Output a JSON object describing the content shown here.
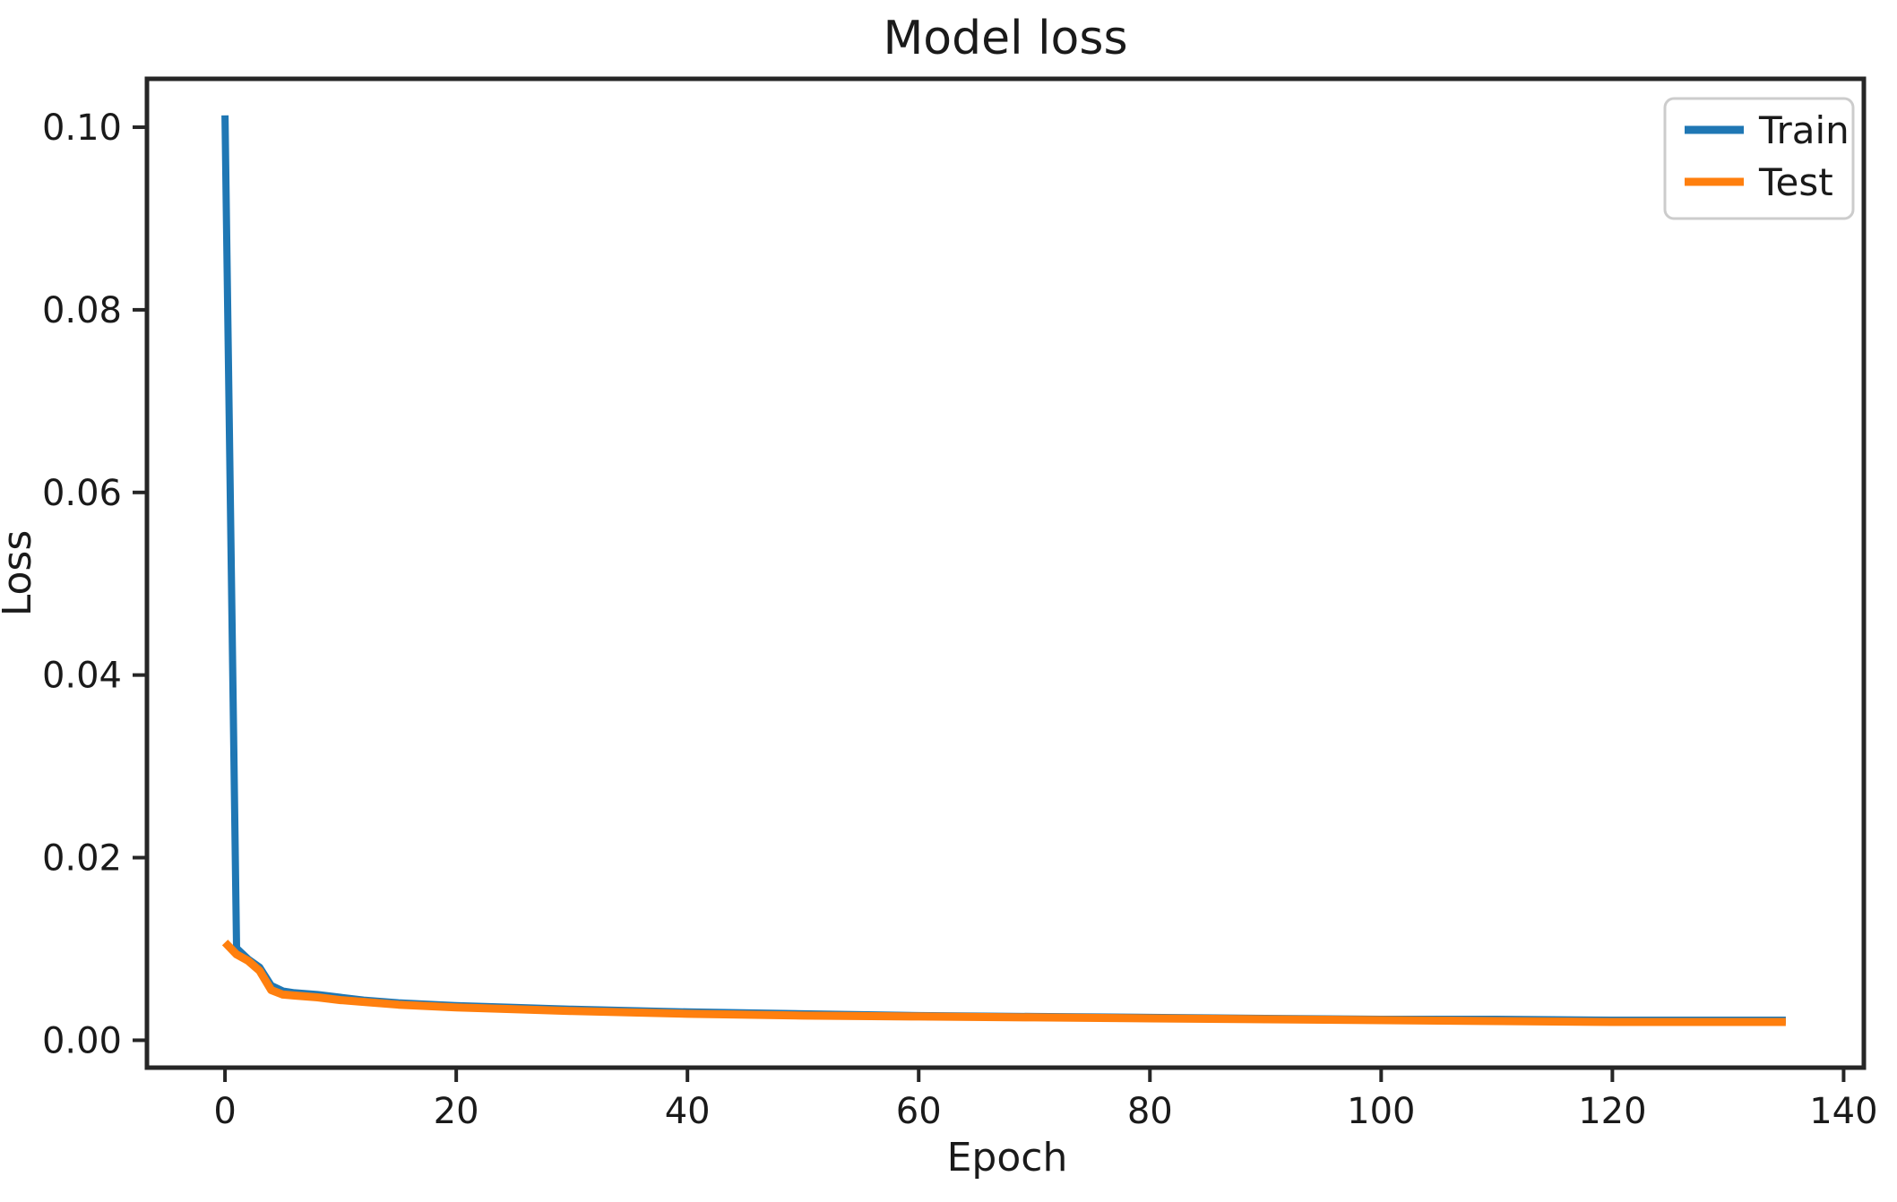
{
  "figure": {
    "background": "#ffffff",
    "spine_color": "#262626",
    "text_color": "#1a1a1a"
  },
  "chart_data": {
    "type": "line",
    "title": "Model loss",
    "xlabel": "Epoch",
    "ylabel": "Loss",
    "grid": false,
    "xlim": [
      -6.75,
      141.75
    ],
    "ylim": [
      -0.003,
      0.1053
    ],
    "x_ticks": {
      "values": [
        0,
        20,
        40,
        60,
        80,
        100,
        120,
        140
      ],
      "labels": [
        "0",
        "20",
        "40",
        "60",
        "80",
        "100",
        "120",
        "140"
      ]
    },
    "y_ticks": {
      "values": [
        0.0,
        0.02,
        0.04,
        0.06,
        0.08,
        0.1
      ],
      "labels": [
        "0.00",
        "0.02",
        "0.04",
        "0.06",
        "0.08",
        "0.10"
      ]
    },
    "legend": {
      "position": "upper right",
      "border_color": "#cccccc",
      "background": "#ffffff",
      "entries": [
        "Train",
        "Test"
      ]
    },
    "x": [
      0,
      1,
      2,
      3,
      4,
      5,
      6,
      8,
      10,
      12,
      15,
      20,
      25,
      30,
      40,
      50,
      60,
      70,
      80,
      90,
      100,
      110,
      120,
      130,
      135
    ],
    "series": [
      {
        "name": "Train",
        "color": "#1f77b4",
        "line_width": 8,
        "values": [
          0.1013,
          0.0101,
          0.0089,
          0.008,
          0.006,
          0.0054,
          0.0052,
          0.005,
          0.0047,
          0.0044,
          0.0041,
          0.0038,
          0.0036,
          0.0034,
          0.0031,
          0.0029,
          0.0027,
          0.0026,
          0.0025,
          0.0024,
          0.0023,
          0.0023,
          0.0022,
          0.0022,
          0.0022
        ]
      },
      {
        "name": "Test",
        "color": "#ff7f0e",
        "line_width": 9,
        "values": [
          0.0107,
          0.0094,
          0.0087,
          0.0076,
          0.0055,
          0.005,
          0.0049,
          0.0047,
          0.0044,
          0.0042,
          0.0039,
          0.0036,
          0.0034,
          0.0032,
          0.0029,
          0.0027,
          0.0026,
          0.0025,
          0.0024,
          0.0023,
          0.0022,
          0.0021,
          0.002,
          0.002,
          0.002
        ]
      }
    ]
  }
}
